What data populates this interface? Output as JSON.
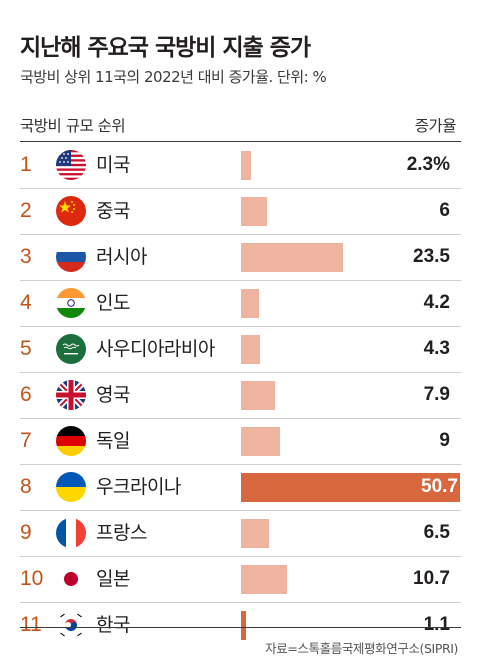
{
  "title": "지난해 주요국 국방비 지출 증가",
  "subtitle": "국방비 상위 11국의 2022년 대비 증가율. 단위: %",
  "header_left": "국방비 규모 순위",
  "header_right": "증가율",
  "source": "자료=스톡홀름국제평화연구소(SIPRI)",
  "colors": {
    "rank": "#c2541a",
    "bar": "#efb4a0",
    "highlight_bar": "#d8673d"
  },
  "chart_data": {
    "type": "bar",
    "orientation": "horizontal",
    "unit": "%",
    "highlight": "우크라이나",
    "xlim": [
      0,
      50.7
    ],
    "rows": [
      {
        "rank": "1",
        "country": "미국",
        "value": 2.3,
        "label": "2.3%",
        "flag": "us-flag-icon"
      },
      {
        "rank": "2",
        "country": "중국",
        "value": 6,
        "label": "6",
        "flag": "china-flag-icon"
      },
      {
        "rank": "3",
        "country": "러시아",
        "value": 23.5,
        "label": "23.5",
        "flag": "russia-flag-icon"
      },
      {
        "rank": "4",
        "country": "인도",
        "value": 4.2,
        "label": "4.2",
        "flag": "india-flag-icon"
      },
      {
        "rank": "5",
        "country": "사우디아라비아",
        "value": 4.3,
        "label": "4.3",
        "flag": "saudi-flag-icon"
      },
      {
        "rank": "6",
        "country": "영국",
        "value": 7.9,
        "label": "7.9",
        "flag": "uk-flag-icon"
      },
      {
        "rank": "7",
        "country": "독일",
        "value": 9,
        "label": "9",
        "flag": "germany-flag-icon"
      },
      {
        "rank": "8",
        "country": "우크라이나",
        "value": 50.7,
        "label": "50.7",
        "flag": "ukraine-flag-icon"
      },
      {
        "rank": "9",
        "country": "프랑스",
        "value": 6.5,
        "label": "6.5",
        "flag": "france-flag-icon"
      },
      {
        "rank": "10",
        "country": "일본",
        "value": 10.7,
        "label": "10.7",
        "flag": "japan-flag-icon"
      },
      {
        "rank": "11",
        "country": "한국",
        "value": 1.1,
        "label": "1.1",
        "flag": "korea-flag-icon"
      }
    ]
  }
}
